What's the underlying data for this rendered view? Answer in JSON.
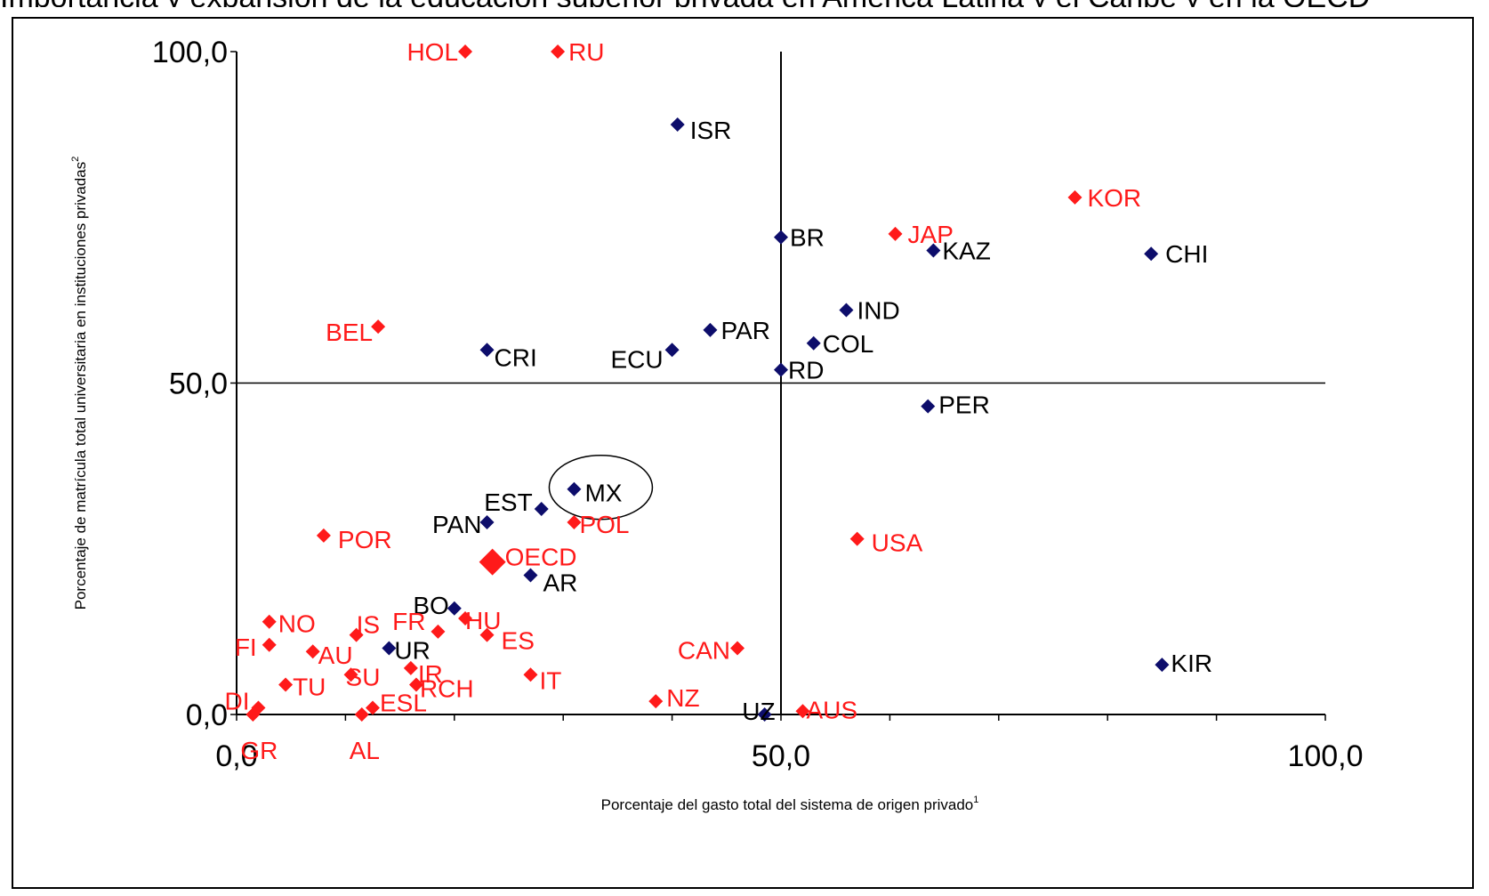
{
  "page_caption_cut": "Importancia y expansión de la educación superior privada en América Latina y el Caribe y en la OECD",
  "chart_data": {
    "type": "scatter",
    "title": "",
    "xlabel": "Porcentaje del gasto total del sistema de origen privado",
    "xlabel_sup": "1",
    "ylabel": "Porcentaje de matrícula total universitaria en instituciones privadas",
    "ylabel_sup": "2",
    "xlim": [
      0,
      100
    ],
    "ylim": [
      0,
      100
    ],
    "x_ticks": [
      "0,0",
      "50,0",
      "100,0"
    ],
    "y_ticks": [
      "0,0",
      "50,0",
      "100,0"
    ],
    "reference_lines": {
      "x": 50,
      "y": 50
    },
    "colors": {
      "latam": "#0d0d6b",
      "oecd": "#ff1a1a",
      "label_latam": "#000000",
      "label_oecd": "#ff1a1a"
    },
    "highlight": "MX",
    "series": [
      {
        "group": "latam",
        "points": [
          {
            "label": "ISR",
            "x": 40.5,
            "y": 89
          },
          {
            "label": "BR",
            "x": 50,
            "y": 72
          },
          {
            "label": "KAZ",
            "x": 64,
            "y": 70
          },
          {
            "label": "CHI",
            "x": 84,
            "y": 69.5
          },
          {
            "label": "IND",
            "x": 56,
            "y": 61
          },
          {
            "label": "PAR",
            "x": 43.5,
            "y": 58
          },
          {
            "label": "COL",
            "x": 53,
            "y": 56
          },
          {
            "label": "CRI",
            "x": 23,
            "y": 55
          },
          {
            "label": "ECU",
            "x": 40,
            "y": 55
          },
          {
            "label": "RD",
            "x": 50,
            "y": 52
          },
          {
            "label": "PER",
            "x": 63.5,
            "y": 46.5
          },
          {
            "label": "MX",
            "x": 31,
            "y": 34
          },
          {
            "label": "EST",
            "x": 28,
            "y": 31
          },
          {
            "label": "PAN",
            "x": 23,
            "y": 29
          },
          {
            "label": "AR",
            "x": 27,
            "y": 21
          },
          {
            "label": "BO",
            "x": 20,
            "y": 16
          },
          {
            "label": "UR",
            "x": 14,
            "y": 10
          },
          {
            "label": "KIR",
            "x": 85,
            "y": 7.5
          },
          {
            "label": "UZ",
            "x": 48.5,
            "y": 0
          }
        ]
      },
      {
        "group": "oecd",
        "points": [
          {
            "label": "HOL",
            "x": 21,
            "y": 100
          },
          {
            "label": "RU",
            "x": 29.5,
            "y": 100
          },
          {
            "label": "KOR",
            "x": 77,
            "y": 78
          },
          {
            "label": "JAP",
            "x": 60.5,
            "y": 72.5
          },
          {
            "label": "BEL",
            "x": 13,
            "y": 58.5
          },
          {
            "label": "POL",
            "x": 31,
            "y": 29
          },
          {
            "label": "POR",
            "x": 8,
            "y": 27
          },
          {
            "label": "USA",
            "x": 57,
            "y": 26.5
          },
          {
            "label": "OECD",
            "x": 23.5,
            "y": 23,
            "big": true
          },
          {
            "label": "NO",
            "x": 3,
            "y": 14
          },
          {
            "label": "IS",
            "x": 11,
            "y": 12
          },
          {
            "label": "FR",
            "x": 18.5,
            "y": 12.5
          },
          {
            "label": "HU",
            "x": 21,
            "y": 14.5
          },
          {
            "label": "ES",
            "x": 23,
            "y": 12
          },
          {
            "label": "FI",
            "x": 3,
            "y": 10.5
          },
          {
            "label": "AU",
            "x": 7,
            "y": 9.5
          },
          {
            "label": "CAN",
            "x": 46,
            "y": 10
          },
          {
            "label": "SU",
            "x": 10.5,
            "y": 6
          },
          {
            "label": "IR",
            "x": 16,
            "y": 7
          },
          {
            "label": "IT",
            "x": 27,
            "y": 6
          },
          {
            "label": "TU",
            "x": 4.5,
            "y": 4.5
          },
          {
            "label": "RCH",
            "x": 16.5,
            "y": 4.5
          },
          {
            "label": "DI",
            "x": 2,
            "y": 1
          },
          {
            "label": "NZ",
            "x": 38.5,
            "y": 2
          },
          {
            "label": "AUS",
            "x": 52,
            "y": 0.5
          },
          {
            "label": "ESL",
            "x": 12.5,
            "y": 1
          },
          {
            "label": "GR",
            "x": 1.5,
            "y": 0
          },
          {
            "label": "AL",
            "x": 11.5,
            "y": 0
          }
        ]
      }
    ]
  }
}
